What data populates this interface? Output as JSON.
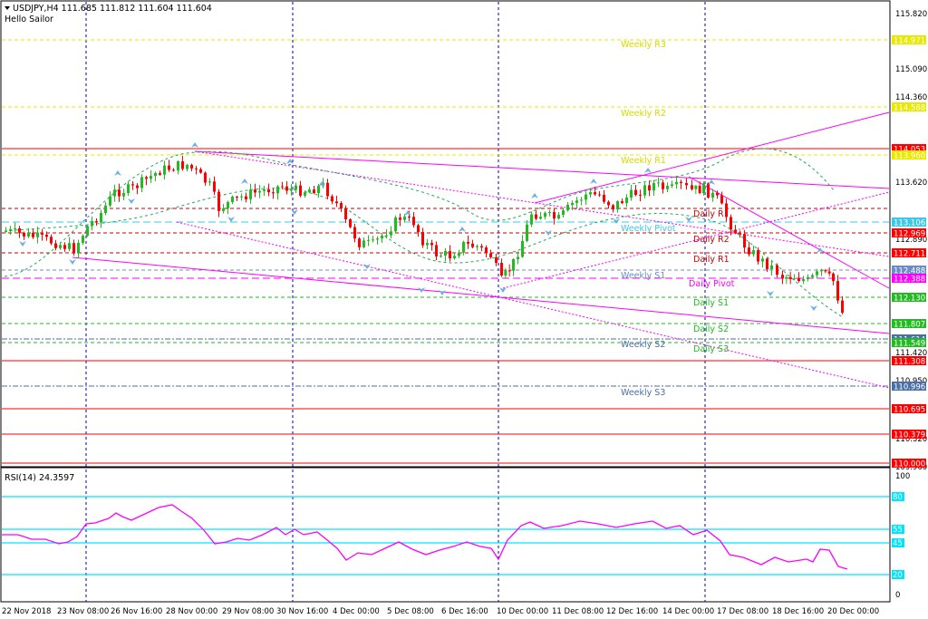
{
  "header": {
    "symbol_line": "USDJPY,H4  111.685 111.812 111.604 111.604",
    "indicator_name": "Hello Sailor"
  },
  "rsi": {
    "title": "RSI(14) 24.3597",
    "axis_labels": [
      "100",
      "0"
    ],
    "level_labels": [
      "80",
      "55",
      "45",
      "20"
    ]
  },
  "price_axis": {
    "ticks": [
      "115.820",
      "115.090",
      "114.360",
      "113.620",
      "112.890",
      "111.420",
      "110.950",
      "110.320",
      "109.960"
    ]
  },
  "price_tags": [
    {
      "text": "114.971",
      "bg": "#e8e800",
      "fg": "#ffffff"
    },
    {
      "text": "114.588",
      "bg": "#e8e800",
      "fg": "#ffffff"
    },
    {
      "text": "114.053",
      "bg": "#ff0000",
      "fg": "#ffffff"
    },
    {
      "text": "113.960",
      "bg": "#e8e800",
      "fg": "#ffffff"
    },
    {
      "text": "113.106",
      "bg": "#3ec8e8",
      "fg": "#ffffff"
    },
    {
      "text": "112.969",
      "bg": "#ff0000",
      "fg": "#ffffff"
    },
    {
      "text": "112.711",
      "bg": "#ff0000",
      "fg": "#ffffff"
    },
    {
      "text": "112.488",
      "bg": "#6a8cc8",
      "fg": "#ffffff"
    },
    {
      "text": "112.388",
      "bg": "#ff00ff",
      "fg": "#ffffff"
    },
    {
      "text": "112.130",
      "bg": "#22bb22",
      "fg": "#ffffff"
    },
    {
      "text": "111.807",
      "bg": "#22bb22",
      "fg": "#ffffff"
    },
    {
      "text": "111.614",
      "bg": "#4a6fa8",
      "fg": "#ffffff"
    },
    {
      "text": "111.549",
      "bg": "#22bb22",
      "fg": "#ffffff"
    },
    {
      "text": "111.308",
      "bg": "#ff0000",
      "fg": "#ffffff"
    },
    {
      "text": "110.996",
      "bg": "#4a6fa8",
      "fg": "#ffffff"
    },
    {
      "text": "110.695",
      "bg": "#ff0000",
      "fg": "#ffffff"
    },
    {
      "text": "110.379",
      "bg": "#ff0000",
      "fg": "#ffffff"
    },
    {
      "text": "110.000",
      "bg": "#ff0000",
      "fg": "#ffffff"
    }
  ],
  "pivot_labels": {
    "weekly_r3": "Weekly R3",
    "weekly_r2": "Weekly R2",
    "weekly_r1": "Weekly R1",
    "weekly_pivot": "Weekly Pivot",
    "weekly_s1": "Weekly S1",
    "weekly_s2": "Weekly S2",
    "weekly_s3": "Weekly S3",
    "daily_r3": "Daily R",
    "daily_r2": "Daily R2",
    "daily_r1": "Daily R1",
    "daily_pivot": "Daily Pivot",
    "daily_s1": "Daily S1",
    "daily_s2": "Daily S2",
    "daily_s3": "Daily S3"
  },
  "time_axis": [
    "22 Nov 2018",
    "23 Nov 08:00",
    "26 Nov 16:00",
    "28 Nov 00:00",
    "29 Nov 08:00",
    "30 Nov 16:00",
    "4 Dec 00:00",
    "5 Dec 08:00",
    "6 Dec 16:00",
    "10 Dec 00:00",
    "11 Dec 08:00",
    "12 Dec 16:00",
    "14 Dec 00:00",
    "17 Dec 08:00",
    "18 Dec 16:00",
    "20 Dec 00:00"
  ],
  "colors": {
    "bull_candle": "#22bb22",
    "bear_candle": "#ff0000",
    "trendline": "#ff00ff",
    "rsi_line": "#ff00ff",
    "rsi_levels": "#00e5ff",
    "grid_vertical": "#0000aa"
  }
}
